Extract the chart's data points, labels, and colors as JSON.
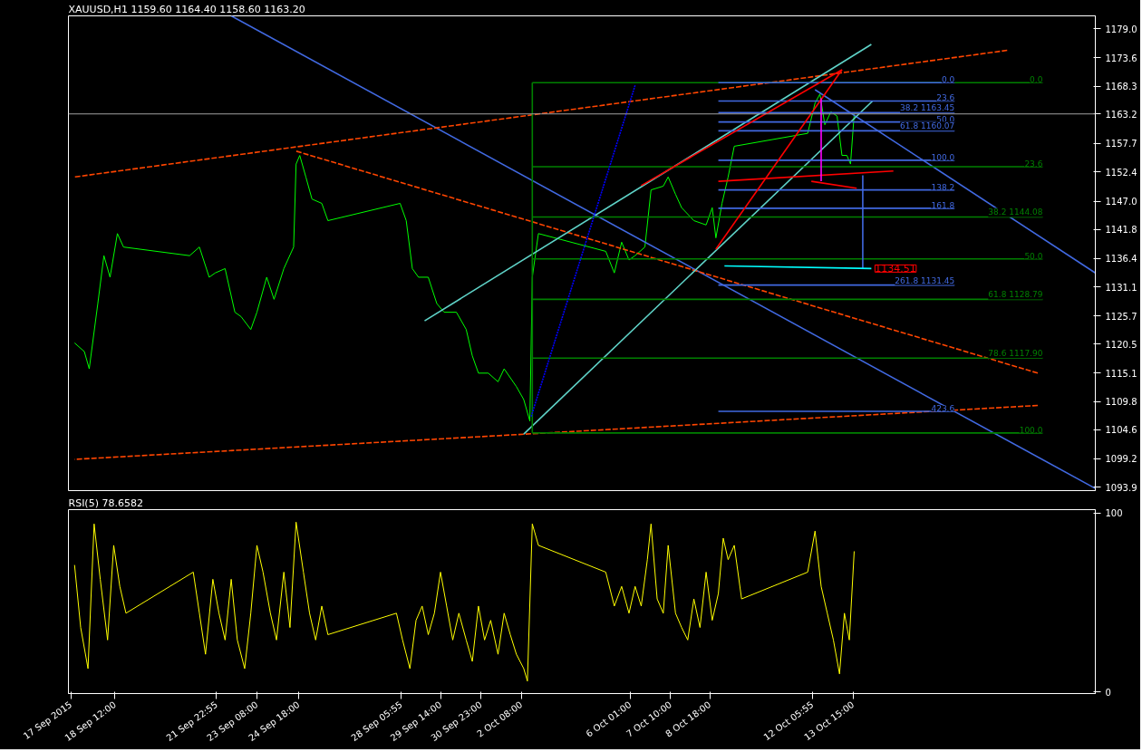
{
  "chart_data": [
    {
      "type": "line",
      "title": "XAUUSD,H1  1159.60 1164.40 1158.60 1163.20",
      "xlim": [
        "2015-09-16T22:00",
        "2015-10-21T21:00"
      ],
      "ylim": [
        1093.3,
        1181.4
      ],
      "yticks": [
        {
          "value": 1179,
          "label": "1179.0"
        },
        1173.6,
        1168.3,
        1163.2,
        1157.7,
        1152.4,
        {
          "value": 1147,
          "label": "1147.0"
        },
        1141.8,
        1136.4,
        1131.1,
        1125.7,
        1120.5,
        1115.1,
        1109.8,
        1104.6,
        1099.2,
        1093.9
      ],
      "tick_labels": "y",
      "grid": false,
      "ref_lines": [
        {
          "axis": "y",
          "value": 1163.2,
          "color": "#a0a0a0"
        }
      ],
      "annotations": [
        {
          "text": "1134.51",
          "x": "2015-10-14T06:00",
          "y": 1134.51
        },
        {
          "text": "0.0",
          "x": "2015-10-20T02:00",
          "y": 1169.0
        },
        {
          "text": "23.6",
          "x": "2015-10-20T02:00",
          "y": 1153.4
        },
        {
          "text": "38.2 1144.08",
          "x": "2015-10-20T02:00",
          "y": 1144.08
        },
        {
          "text": "50.0",
          "x": "2015-10-20T02:00",
          "y": 1136.3
        },
        {
          "text": "61.8 1128.79",
          "x": "2015-10-20T02:00",
          "y": 1128.79
        },
        {
          "text": "78.6 1117.90",
          "x": "2015-10-20T02:00",
          "y": 1117.9
        },
        {
          "text": "100.0",
          "x": "2015-10-20T02:00",
          "y": 1104.0
        },
        {
          "text": "0.0",
          "x": "2015-10-17T02:00",
          "y": 1169.0
        },
        {
          "text": "23.6",
          "x": "2015-10-17T02:00",
          "y": 1165.6
        },
        {
          "text": "38.2 1163.45",
          "x": "2015-10-17T02:00",
          "y": 1163.45
        },
        {
          "text": "50.0",
          "x": "2015-10-17T02:00",
          "y": 1161.7
        },
        {
          "text": "61.8 1160.07",
          "x": "2015-10-17T02:00",
          "y": 1160.07
        },
        {
          "text": "100.0",
          "x": "2015-10-17T02:00",
          "y": 1154.6
        },
        {
          "text": "138.2",
          "x": "2015-10-17T02:00",
          "y": 1149.1
        },
        {
          "text": "161.8",
          "x": "2015-10-17T02:00",
          "y": 1145.7
        },
        {
          "text": "261.8 1131.45",
          "x": "2015-10-17T02:00",
          "y": 1131.45
        },
        {
          "text": "423.6",
          "x": "2015-10-17T02:00",
          "y": 1108.0
        }
      ],
      "series": [
        {
          "color": "#00ff00",
          "x": [
            "2015-09-17T03:00",
            "2015-09-17T11:00",
            "2015-09-17T15:00",
            "2015-09-17T22:00",
            "2015-09-18T03:00",
            "2015-09-18T08:00",
            "2015-09-18T14:00",
            "2015-09-18T19:00",
            "2015-09-21T01:00",
            "2015-09-21T09:00",
            "2015-09-21T17:00",
            "2015-09-21T22:00",
            "2015-09-22T06:00",
            "2015-09-22T14:00",
            "2015-09-22T19:00",
            "2015-09-23T03:00",
            "2015-09-23T08:00",
            "2015-09-23T16:00",
            "2015-09-23T22:00",
            "2015-09-24T06:00",
            "2015-09-24T14:00",
            "2015-09-24T16:00",
            "2015-09-24T19:00",
            "2015-09-25T00:00",
            "2015-09-25T05:00",
            "2015-09-25T13:00",
            "2015-09-25T18:00",
            "2015-09-28T05:00",
            "2015-09-28T10:00",
            "2015-09-28T15:00",
            "2015-09-28T20:00",
            "2015-09-29T04:00",
            "2015-09-29T11:00",
            "2015-09-29T17:00",
            "2015-09-30T03:00",
            "2015-09-30T11:00",
            "2015-09-30T16:00",
            "2015-09-30T21:00",
            "2015-10-01T05:00",
            "2015-10-01T13:00",
            "2015-10-01T18:00",
            "2015-10-02T04:00",
            "2015-10-02T10:00",
            "2015-10-02T15:00",
            "2015-10-02T17:00",
            "2015-10-02T22:00",
            "2015-10-05T05:00",
            "2015-10-05T12:00",
            "2015-10-05T18:00",
            "2015-10-06T00:00",
            "2015-10-06T05:00",
            "2015-10-06T13:00",
            "2015-10-06T18:00",
            "2015-10-07T04:00",
            "2015-10-07T08:00",
            "2015-10-07T14:00",
            "2015-10-07T19:00",
            "2015-10-08T05:00",
            "2015-10-08T15:00",
            "2015-10-08T20:00",
            "2015-10-08T23:00",
            "2015-10-09T04:00",
            "2015-10-09T09:00",
            "2015-10-09T14:00",
            "2015-10-12T02:00",
            "2015-10-12T08:00",
            "2015-10-12T12:00",
            "2015-10-12T16:00",
            "2015-10-12T21:00",
            "2015-10-13T02:00",
            "2015-10-13T06:00",
            "2015-10-13T10:00",
            "2015-10-13T13:00",
            "2015-10-13T16:00"
          ],
          "values": [
            1120.7,
            1119.1,
            1115.9,
            1128.0,
            1136.9,
            1132.9,
            1141.0,
            1138.5,
            1136.9,
            1138.5,
            1132.9,
            1133.7,
            1134.5,
            1126.4,
            1125.6,
            1123.2,
            1126.4,
            1132.9,
            1128.8,
            1134.5,
            1138.5,
            1153.9,
            1155.5,
            1151.5,
            1147.4,
            1146.6,
            1143.4,
            1146.6,
            1143.4,
            1134.5,
            1132.9,
            1132.9,
            1128.0,
            1126.4,
            1126.4,
            1123.2,
            1118.3,
            1115.1,
            1115.1,
            1113.5,
            1115.9,
            1112.6,
            1110.2,
            1106.2,
            1132.9,
            1141.0,
            1137.7,
            1133.7,
            1139.4,
            1136.1,
            1136.9,
            1138.5,
            1149.1,
            1149.8,
            1151.5,
            1148.3,
            1145.8,
            1143.4,
            1142.6,
            1145.8,
            1140.2,
            1146.6,
            1151.5,
            1157.2,
            1159.6,
            1165.2,
            1166.9,
            1161.2,
            1163.6,
            1162.8,
            1155.5,
            1155.5,
            1153.9,
            1163.2
          ]
        },
        {
          "color": "#4169e1",
          "x": [
            "2015-09-22T11:00",
            "2015-10-21T21:00"
          ],
          "values": [
            1181.4,
            1093.7
          ]
        },
        {
          "color": "#4169e1",
          "x": [
            "2015-10-12T08:00",
            "2015-10-21T21:00"
          ],
          "values": [
            1167.7,
            1133.7
          ]
        },
        {
          "color": "#ff4500",
          "line_style": "dashed",
          "x": [
            "2015-09-17T03:00",
            "2015-10-18T21:00"
          ],
          "values": [
            1151.5,
            1175.0
          ]
        },
        {
          "color": "#ff4500",
          "line_style": "dashed",
          "x": [
            "2015-09-24T16:00",
            "2015-10-19T22:00"
          ],
          "values": [
            1156.3,
            1115.1
          ]
        },
        {
          "color": "#ff4500",
          "line_style": "dashed",
          "x": [
            "2015-09-17T03:00",
            "2015-10-19T22:00"
          ],
          "values": [
            1099.1,
            1109.1
          ]
        },
        {
          "color": "#5fd3c8",
          "x": [
            "2015-09-29T01:00",
            "2015-10-14T06:00"
          ],
          "values": [
            1124.8,
            1176.1
          ]
        },
        {
          "color": "#5fd3c8",
          "x": [
            "2015-10-02T10:00",
            "2015-10-14T07:00"
          ],
          "values": [
            1103.8,
            1165.6
          ]
        },
        {
          "color": "#008000",
          "x": [
            "2015-10-02T17:00",
            "2015-10-02T17:00"
          ],
          "values": [
            1104.0,
            1169.0
          ]
        },
        {
          "color": "#008000",
          "x": [
            "2015-10-02T17:00",
            "2015-10-20T02:00"
          ],
          "values": [
            1169.0,
            1169.0
          ]
        },
        {
          "color": "#008000",
          "x": [
            "2015-10-02T17:00",
            "2015-10-20T02:00"
          ],
          "values": [
            1153.4,
            1153.4
          ]
        },
        {
          "color": "#008000",
          "x": [
            "2015-10-02T17:00",
            "2015-10-20T02:00"
          ],
          "values": [
            1144.08,
            1144.08
          ]
        },
        {
          "color": "#008000",
          "x": [
            "2015-10-02T17:00",
            "2015-10-20T02:00"
          ],
          "values": [
            1136.3,
            1136.3
          ]
        },
        {
          "color": "#008000",
          "x": [
            "2015-10-02T17:00",
            "2015-10-20T02:00"
          ],
          "values": [
            1128.79,
            1128.79
          ]
        },
        {
          "color": "#008000",
          "x": [
            "2015-10-02T17:00",
            "2015-10-20T02:00"
          ],
          "values": [
            1117.9,
            1117.9
          ]
        },
        {
          "color": "#008000",
          "x": [
            "2015-10-02T17:00",
            "2015-10-20T02:00"
          ],
          "values": [
            1104.0,
            1104.0
          ]
        },
        {
          "color": "#4169e1",
          "x": [
            "2015-10-09T01:00",
            "2015-10-17T02:00"
          ],
          "values": [
            1169.0,
            1169.0
          ]
        },
        {
          "color": "#4169e1",
          "x": [
            "2015-10-09T01:00",
            "2015-10-17T02:00"
          ],
          "values": [
            1165.6,
            1165.6
          ]
        },
        {
          "color": "#4169e1",
          "x": [
            "2015-10-09T01:00",
            "2015-10-17T02:00"
          ],
          "values": [
            1163.45,
            1163.45
          ]
        },
        {
          "color": "#4169e1",
          "x": [
            "2015-10-09T01:00",
            "2015-10-17T02:00"
          ],
          "values": [
            1161.7,
            1161.7
          ]
        },
        {
          "color": "#4169e1",
          "x": [
            "2015-10-09T01:00",
            "2015-10-17T02:00"
          ],
          "values": [
            1160.07,
            1160.07
          ]
        },
        {
          "color": "#4169e1",
          "x": [
            "2015-10-09T01:00",
            "2015-10-17T02:00"
          ],
          "values": [
            1154.6,
            1154.6
          ]
        },
        {
          "color": "#4169e1",
          "x": [
            "2015-10-09T01:00",
            "2015-10-17T02:00"
          ],
          "values": [
            1149.1,
            1149.1
          ]
        },
        {
          "color": "#4169e1",
          "x": [
            "2015-10-09T01:00",
            "2015-10-17T02:00"
          ],
          "values": [
            1145.7,
            1145.7
          ]
        },
        {
          "color": "#4169e1",
          "x": [
            "2015-10-09T01:00",
            "2015-10-17T02:00"
          ],
          "values": [
            1131.45,
            1131.45
          ]
        },
        {
          "color": "#4169e1",
          "x": [
            "2015-10-09T01:00",
            "2015-10-17T02:00"
          ],
          "values": [
            1108.0,
            1108.0
          ]
        },
        {
          "color": "#ff0000",
          "x": [
            "2015-10-06T10:00",
            "2015-10-13T06:00"
          ],
          "values": [
            1149.9,
            1171.4
          ]
        },
        {
          "color": "#ff0000",
          "x": [
            "2015-10-08T23:00",
            "2015-10-13T06:00"
          ],
          "values": [
            1138.1,
            1171.4
          ]
        },
        {
          "color": "#ff0000",
          "x": [
            "2015-10-09T01:00",
            "2015-10-15T00:00"
          ],
          "values": [
            1150.7,
            1152.6
          ]
        },
        {
          "color": "#ff0000",
          "x": [
            "2015-10-13T18:00",
            "2015-10-12T05:00"
          ],
          "values": [
            1149.4,
            1150.7
          ]
        },
        {
          "color": "#ff00ff",
          "x": [
            "2015-10-12T13:00",
            "2015-10-12T13:00"
          ],
          "values": [
            1166.1,
            1150.7
          ]
        },
        {
          "color": "#4169e1",
          "x": [
            "2015-10-13T23:00",
            "2015-10-13T23:00"
          ],
          "values": [
            1151.8,
            1134.51
          ]
        },
        {
          "color": "#00ffff",
          "x": [
            "2015-10-14T06:00",
            "2015-10-09T06:00"
          ],
          "values": [
            1134.51,
            1135.0
          ]
        },
        {
          "color": "#0000ff",
          "line_style": "dotted",
          "x": [
            "2015-10-02T16:00",
            "2015-10-06T05:00"
          ],
          "values": [
            1107.0,
            1168.5
          ]
        }
      ]
    },
    {
      "type": "line",
      "title": "RSI(5) 78.6582",
      "xlim": [
        "2015-09-16T22:00",
        "2015-10-21T21:00"
      ],
      "ylim": [
        -1,
        102
      ],
      "yticks": [
        0,
        100
      ],
      "xticks": [
        {
          "value": "2015-09-17",
          "label": "17 Sep 2015"
        },
        {
          "value": "2015-09-18T12:00",
          "label": "18 Sep 12:00"
        },
        {
          "value": "2015-09-21T22:55",
          "label": "21 Sep 22:55"
        },
        {
          "value": "2015-09-23T08:00",
          "label": "23 Sep 08:00"
        },
        {
          "value": "2015-09-24T18:00",
          "label": "24 Sep 18:00"
        },
        {
          "value": "2015-09-28T05:55",
          "label": "28 Sep 05:55"
        },
        {
          "value": "2015-09-29T14:00",
          "label": "29 Sep 14:00"
        },
        {
          "value": "2015-09-30T23:00",
          "label": "30 Sep 23:00"
        },
        {
          "value": "2015-10-02T08:00",
          "label": "2 Oct 08:00"
        },
        {
          "value": "2015-10-06T01:00",
          "label": "6 Oct 01:00"
        },
        {
          "value": "2015-10-07T10:00",
          "label": "7 Oct 10:00"
        },
        {
          "value": "2015-10-08T18:00",
          "label": "8 Oct 18:00"
        },
        {
          "value": "2015-10-12T05:55",
          "label": "12 Oct 05:55"
        },
        {
          "value": "2015-10-13T15:00",
          "label": "13 Oct 15:00"
        }
      ],
      "grid": false,
      "series": [
        {
          "color": "#ffff00",
          "x": [
            "2015-09-17T03:00",
            "2015-09-17T08:00",
            "2015-09-17T14:00",
            "2015-09-17T19:00",
            "2015-09-18T00:00",
            "2015-09-18T06:00",
            "2015-09-18T11:00",
            "2015-09-18T16:00",
            "2015-09-18T21:00",
            "2015-09-21T04:00",
            "2015-09-21T09:00",
            "2015-09-21T14:00",
            "2015-09-21T20:00",
            "2015-09-22T01:00",
            "2015-09-22T06:00",
            "2015-09-22T11:00",
            "2015-09-22T16:00",
            "2015-09-22T22:00",
            "2015-09-23T03:00",
            "2015-09-23T08:00",
            "2015-09-23T13:00",
            "2015-09-23T19:00",
            "2015-09-24T00:00",
            "2015-09-24T06:00",
            "2015-09-24T11:00",
            "2015-09-24T16:00",
            "2015-09-24T22:00",
            "2015-09-25T03:00",
            "2015-09-25T08:00",
            "2015-09-25T13:00",
            "2015-09-25T18:00",
            "2015-09-28T02:00",
            "2015-09-28T07:00",
            "2015-09-28T13:00",
            "2015-09-28T18:00",
            "2015-09-28T23:00",
            "2015-09-29T04:00",
            "2015-09-29T09:00",
            "2015-09-29T14:00",
            "2015-09-29T19:00",
            "2015-09-30T00:00",
            "2015-09-30T05:00",
            "2015-09-30T11:00",
            "2015-09-30T16:00",
            "2015-09-30T21:00",
            "2015-10-01T02:00",
            "2015-10-01T07:00",
            "2015-10-01T13:00",
            "2015-10-01T18:00",
            "2015-10-01T23:00",
            "2015-10-02T04:00",
            "2015-10-02T10:00",
            "2015-10-02T13:00",
            "2015-10-02T17:00",
            "2015-10-02T22:00",
            "2015-10-05T05:00",
            "2015-10-05T12:00",
            "2015-10-05T18:00",
            "2015-10-06T00:00",
            "2015-10-06T05:00",
            "2015-10-06T10:00",
            "2015-10-06T15:00",
            "2015-10-06T18:00",
            "2015-10-06T23:00",
            "2015-10-07T04:00",
            "2015-10-07T08:00",
            "2015-10-07T14:00",
            "2015-10-07T19:00",
            "2015-10-08T00:00",
            "2015-10-08T05:00",
            "2015-10-08T10:00",
            "2015-10-08T15:00",
            "2015-10-08T20:00",
            "2015-10-09T01:00",
            "2015-10-09T05:00",
            "2015-10-09T09:00",
            "2015-10-09T14:00",
            "2015-10-09T20:00",
            "2015-10-12T02:00",
            "2015-10-12T08:00",
            "2015-10-12T13:00",
            "2015-10-12T18:00",
            "2015-10-12T23:00",
            "2015-10-13T04:00",
            "2015-10-13T08:00",
            "2015-10-13T12:00",
            "2015-10-13T16:00"
          ],
          "values": [
            71,
            36,
            13,
            94,
            63,
            29,
            82,
            59,
            44,
            67,
            44,
            21,
            63,
            44,
            29,
            63,
            29,
            13,
            44,
            82,
            67,
            44,
            29,
            67,
            36,
            95,
            67,
            44,
            29,
            48,
            32,
            44,
            29,
            13,
            40,
            48,
            32,
            44,
            67,
            48,
            29,
            44,
            29,
            17,
            48,
            29,
            40,
            21,
            44,
            32,
            21,
            13,
            6,
            94,
            82,
            67,
            48,
            59,
            44,
            59,
            48,
            74,
            94,
            52,
            44,
            82,
            44,
            36,
            29,
            52,
            36,
            67,
            40,
            55,
            86,
            74,
            82,
            52,
            67,
            90,
            59,
            44,
            29,
            10,
            44,
            29,
            78.6582
          ]
        }
      ]
    }
  ]
}
